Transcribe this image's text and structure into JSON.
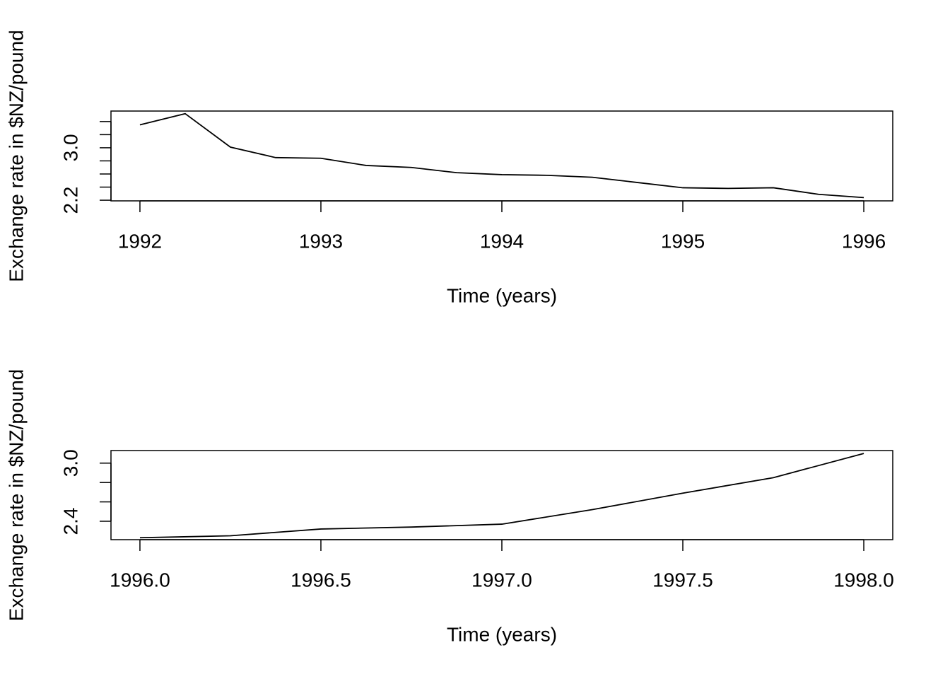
{
  "chart_data": [
    {
      "type": "line",
      "xlabel": "Time (years)",
      "ylabel": "Exchange rate in $NZ/pound",
      "color": "#000000",
      "x": [
        1992,
        1992.25,
        1992.5,
        1992.75,
        1993,
        1993.25,
        1993.5,
        1993.75,
        1994,
        1994.25,
        1994.5,
        1994.75,
        1995,
        1995.25,
        1995.5,
        1995.75,
        1996
      ],
      "values": [
        3.35,
        3.52,
        3.01,
        2.85,
        2.84,
        2.73,
        2.7,
        2.62,
        2.59,
        2.58,
        2.55,
        2.47,
        2.39,
        2.38,
        2.39,
        2.29,
        2.24
      ],
      "xlim": [
        1991.84,
        1996.16
      ],
      "xticks": [
        1992,
        1993,
        1994,
        1995,
        1996
      ],
      "ylim": [
        2.19,
        3.56
      ],
      "yticks": [
        2.2,
        {
          "value": 2.4,
          "label": null
        },
        {
          "value": 2.6,
          "label": null
        },
        {
          "value": 2.8,
          "label": null
        },
        {
          "value": 3,
          "label": "3.0"
        },
        {
          "value": 3.2,
          "label": null
        },
        {
          "value": 3.4,
          "label": null
        }
      ]
    },
    {
      "type": "line",
      "xlabel": "Time (years)",
      "ylabel": "Exchange rate in $NZ/pound",
      "color": "#000000",
      "x": [
        1996,
        1996.25,
        1996.5,
        1996.75,
        1997,
        1997.25,
        1997.5,
        1997.75,
        1998
      ],
      "values": [
        2.23,
        2.25,
        2.32,
        2.34,
        2.37,
        2.52,
        2.69,
        2.85,
        3.1
      ],
      "xlim": [
        1995.92,
        1998.08
      ],
      "xticks": [
        {
          "value": 1996,
          "label": "1996.0"
        },
        1996.5,
        {
          "value": 1997,
          "label": "1997.0"
        },
        1997.5,
        {
          "value": 1998,
          "label": "1998.0"
        }
      ],
      "ylim": [
        2.21,
        3.13
      ],
      "yticks": [
        2.4,
        {
          "value": 2.6,
          "label": null
        },
        {
          "value": 2.8,
          "label": null
        },
        {
          "value": 3,
          "label": "3.0"
        }
      ]
    }
  ]
}
